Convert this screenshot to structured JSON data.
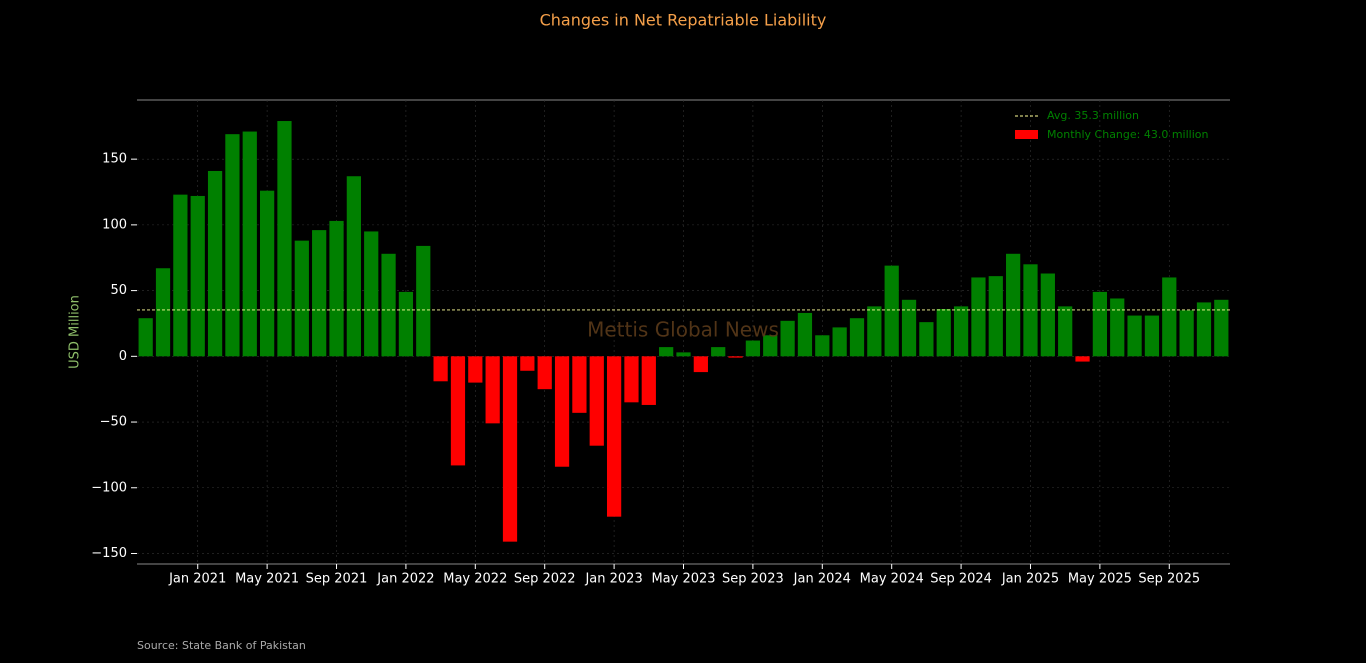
{
  "chart_data": {
    "type": "bar",
    "title": "Changes in Net Repatriable Liability",
    "y_label": "USD Million",
    "source": "Source: State Bank of Pakistan",
    "watermark": "Mettis Global News",
    "categories": [
      null,
      null,
      null,
      "Jan 2021",
      null,
      null,
      null,
      "May 2021",
      null,
      null,
      null,
      "Sep 2021",
      null,
      null,
      null,
      "Jan 2022",
      null,
      null,
      null,
      "May 2022",
      null,
      null,
      null,
      "Sep 2022",
      null,
      null,
      null,
      "Jan 2023",
      null,
      null,
      null,
      "May 2023",
      null,
      null,
      null,
      "Sep 2023",
      null,
      null,
      null,
      "Jan 2024",
      null,
      null,
      null,
      "May 2024",
      null,
      null,
      null,
      "Sep 2024",
      null,
      null,
      null,
      "Jan 2025",
      null,
      null,
      null,
      "May 2025",
      null,
      null,
      null,
      "Sep 2025",
      null,
      null,
      null
    ],
    "values": [
      29,
      67,
      123,
      122,
      141,
      169,
      171,
      126,
      179,
      88,
      96,
      103,
      137,
      95,
      78,
      49,
      84,
      -19,
      -83,
      -20,
      -51,
      -141,
      -11,
      -25,
      -84,
      -43,
      -68,
      -122,
      -35,
      -37,
      7,
      3,
      -12,
      7,
      -1,
      12,
      16,
      27,
      33,
      16,
      22,
      29,
      38,
      69,
      43,
      26,
      36,
      38,
      60,
      61,
      78,
      70,
      63,
      38,
      -4,
      49,
      44,
      31,
      31,
      60,
      35,
      41,
      43
    ],
    "positive_color": "#008000",
    "negative_color": "#ff0000",
    "average": 35.3,
    "average_color": "#ffff99",
    "legend": [
      "Avg. 35.3 million",
      "Monthly Change: 43.0 million"
    ],
    "legend_position": "upper right",
    "ylim": [
      -158,
      195
    ],
    "yticks": [
      {
        "value": -150,
        "label": "−150"
      },
      {
        "value": -100,
        "label": "−100"
      },
      {
        "value": -50,
        "label": "−50"
      },
      0,
      50,
      100,
      150
    ],
    "grid": true
  }
}
